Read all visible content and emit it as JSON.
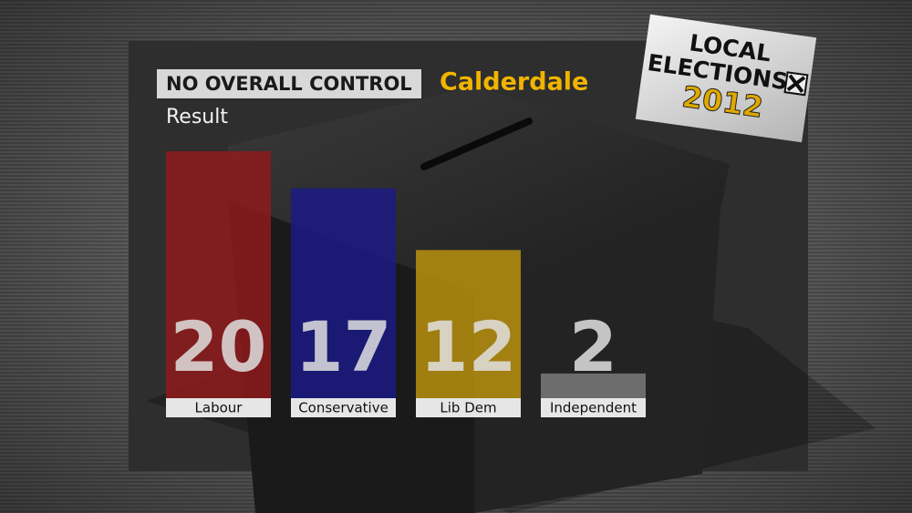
{
  "chart_data": {
    "type": "bar",
    "badge": "NO OVERALL CONTROL",
    "title": "Calderdale",
    "subtitle": "Result",
    "logo": [
      "LOCAL",
      "ELECTIONS",
      "2012"
    ],
    "categories": [
      "Labour",
      "Conservative",
      "Lib Dem",
      "Independent"
    ],
    "values": [
      20,
      17,
      12,
      2
    ],
    "colors": [
      "#8e1a1c",
      "#1b1b86",
      "#b8900e",
      "#7a7a7a"
    ]
  }
}
